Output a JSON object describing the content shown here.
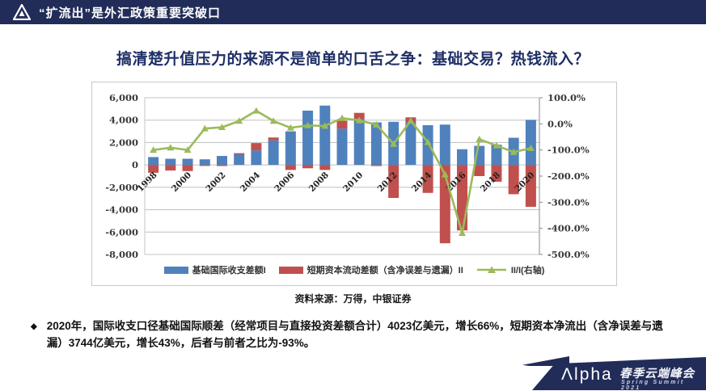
{
  "header": {
    "title": "“扩流出”是外汇政策重要突破口"
  },
  "slide_title": "搞清楚升值压力的来源不是简单的口舌之争：基础交易？热钱流入？",
  "chart_source": "资料来源：万得，中银证券",
  "bullet": {
    "marker": "◆",
    "text": "2020年，国际收支口径基础国际顺差（经常项目与直接投资差额合计）4023亿美元，增长66%，短期资本净流出（含净误差与遗漏）3744亿美元，增长43%，后者与前者之比为-93%。"
  },
  "footer": {
    "logo_text": "Λlpha",
    "event_cn": "春季云端峰会",
    "event_en": "Spring Summit 2021"
  },
  "colors": {
    "navy": "#222c58",
    "bar_blue": "#4f81bd",
    "bar_red": "#c0504d",
    "line_green": "#9bbb59",
    "grid": "#bfbfbf",
    "axis_text": "#3a3a3a"
  },
  "chart_data": {
    "type": "bar",
    "title": "",
    "categories": [
      1998,
      1999,
      2000,
      2001,
      2002,
      2003,
      2004,
      2005,
      2006,
      2007,
      2008,
      2009,
      2010,
      2011,
      2012,
      2013,
      2014,
      2015,
      2016,
      2017,
      2018,
      2019,
      2020
    ],
    "x_tick_labels": [
      "1998",
      "2000",
      "2002",
      "2004",
      "2006",
      "2008",
      "2010",
      "2012",
      "2014",
      "2016",
      "2018",
      "2020"
    ],
    "series": [
      {
        "name": "基础国际收支差额I",
        "type": "bar",
        "axis": "left",
        "color": "#4f81bd",
        "values": [
          700,
          550,
          550,
          500,
          800,
          950,
          1300,
          2200,
          3000,
          4850,
          5300,
          3250,
          4100,
          3800,
          3850,
          3800,
          3550,
          3600,
          1400,
          1700,
          1800,
          2424,
          4023
        ]
      },
      {
        "name": "短期资本流动差额（含净误差与遗漏）II",
        "type": "bar",
        "axis": "left",
        "color": "#c0504d",
        "values": [
          -700,
          -500,
          -550,
          -90,
          -100,
          100,
          650,
          250,
          -450,
          -300,
          -450,
          700,
          550,
          -100,
          -2950,
          450,
          -2500,
          -7000,
          -5850,
          -1000,
          -1500,
          -2618,
          -3744
        ]
      },
      {
        "name": "II/I(右轴)",
        "type": "line",
        "axis": "right",
        "color": "#9bbb59",
        "marker": "triangle",
        "values": [
          -100,
          -91,
          -100,
          -18,
          -13,
          11,
          50,
          11,
          -15,
          -6,
          -8,
          22,
          13,
          -3,
          -77,
          12,
          -70,
          -194,
          -418,
          -59,
          -83,
          -108,
          -93
        ]
      }
    ],
    "left_axis": {
      "min": -8000,
      "max": 6000,
      "step": 2000,
      "tick_labels": [
        "6,000",
        "4,000",
        "2,000",
        "0",
        "-2,000",
        "-4,000",
        "-6,000",
        "-8,000"
      ]
    },
    "right_axis": {
      "min": -500,
      "max": 100,
      "step": 100,
      "tick_labels": [
        "100.0%",
        "0.0%",
        "-100.0%",
        "-200.0%",
        "-300.0%",
        "-400.0%",
        "-500.0%"
      ]
    },
    "grid": true,
    "legend_position": "bottom"
  }
}
